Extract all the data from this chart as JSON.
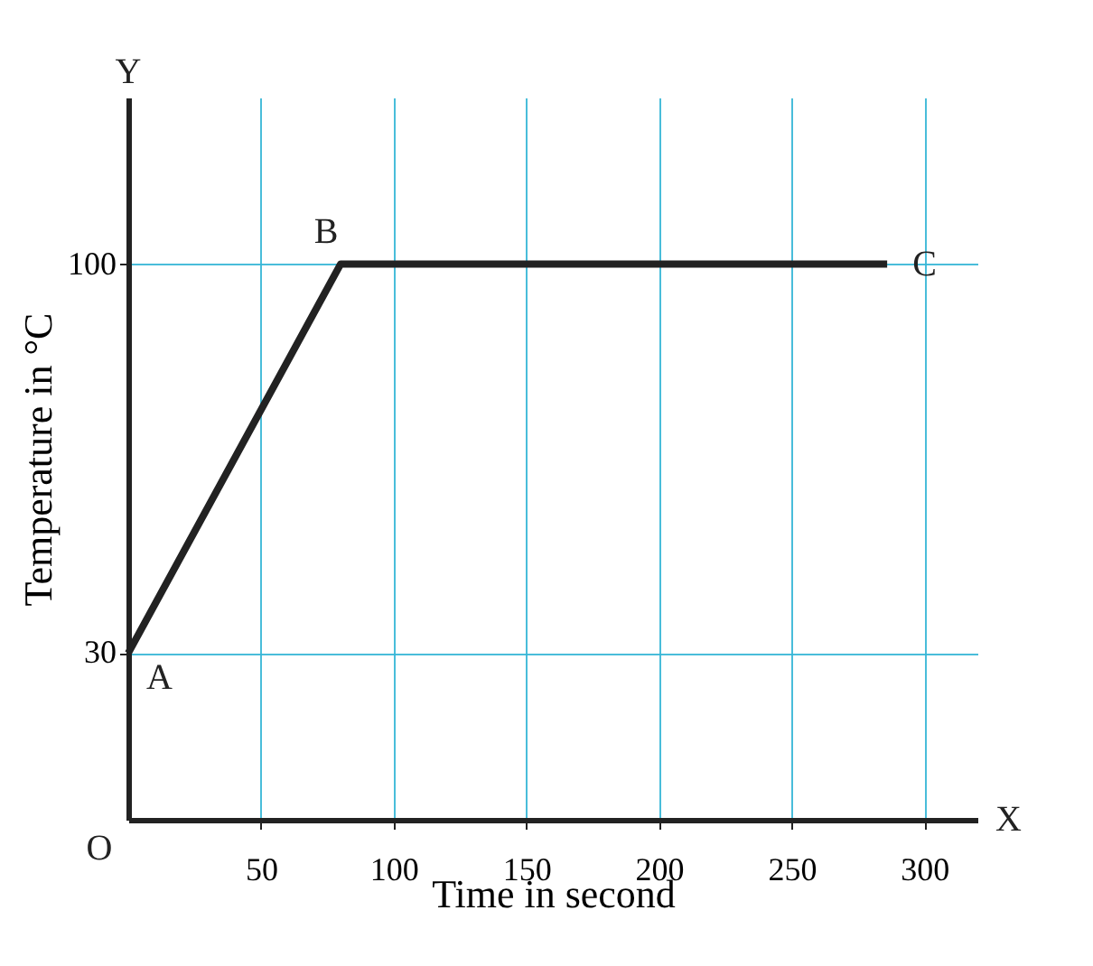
{
  "chart_data": {
    "type": "line",
    "xlabel": "Time in second",
    "ylabel": "Temperature in °C",
    "x": [
      0,
      80,
      286
    ],
    "series": [
      {
        "color": "#222222",
        "values": [
          30,
          100,
          100
        ]
      }
    ],
    "xlim": [
      0,
      320
    ],
    "ylim": [
      0,
      130
    ],
    "xticks": [
      50,
      100,
      150,
      200,
      250,
      300
    ],
    "yticks": [
      30,
      100
    ],
    "grid": true,
    "marker": "none",
    "line_style": "solid",
    "annotations": [
      {
        "text": "A",
        "x": 0,
        "y": 30
      },
      {
        "text": "B",
        "x": 80,
        "y": 100
      },
      {
        "text": "C",
        "x": 286,
        "y": 100
      },
      "O",
      "X",
      "Y"
    ]
  }
}
